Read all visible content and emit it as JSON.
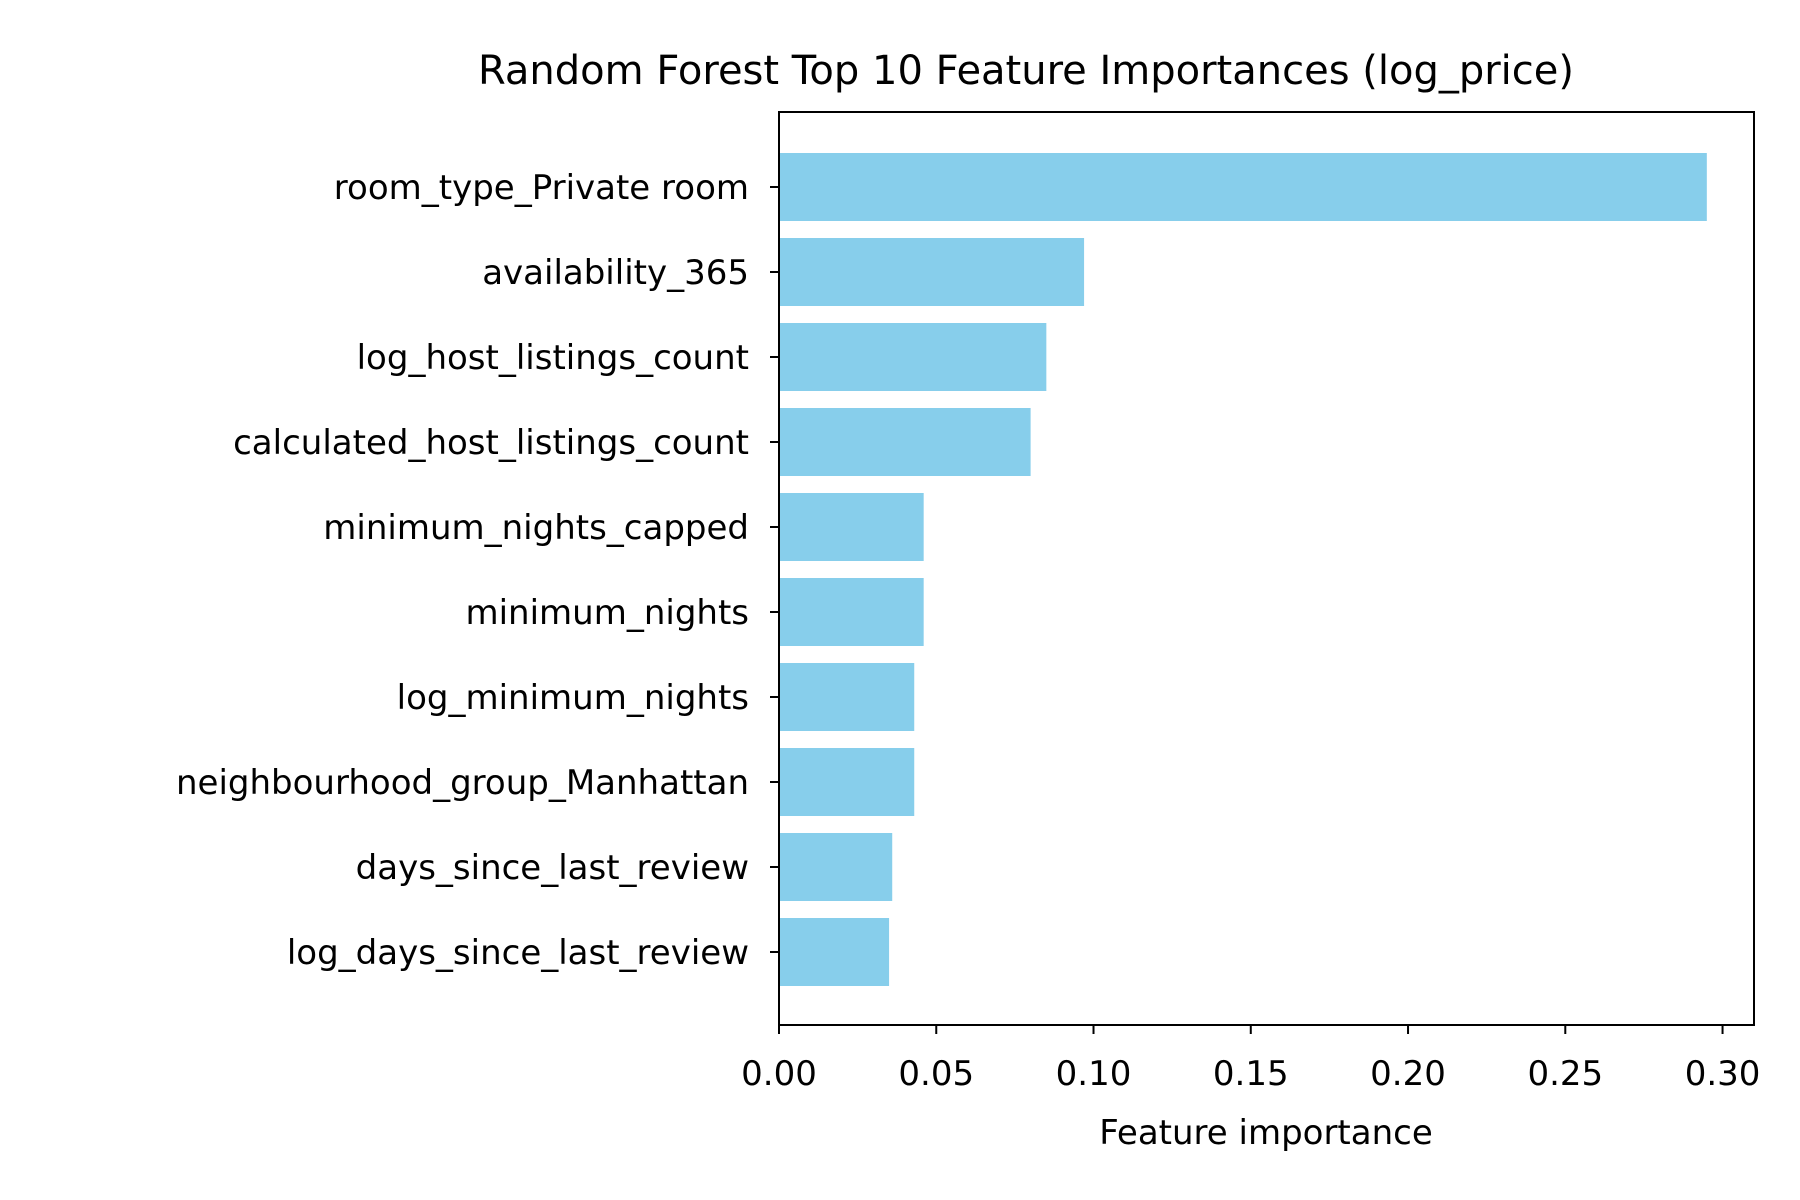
{
  "chart_data": {
    "type": "bar",
    "orientation": "horizontal",
    "title": "Random Forest Top 10 Feature Importances (log_price)",
    "xlabel": "Feature importance",
    "ylabel": "",
    "xlim": [
      0,
      0.31
    ],
    "x_ticks": [
      0.0,
      0.05,
      0.1,
      0.15,
      0.2,
      0.25,
      0.3
    ],
    "x_tick_labels": [
      "0.00",
      "0.05",
      "0.10",
      "0.15",
      "0.20",
      "0.25",
      "0.30"
    ],
    "grid": false,
    "legend": "none",
    "bar_color": "#87ceeb",
    "categories": [
      "room_type_Private room",
      "availability_365",
      "log_host_listings_count",
      "calculated_host_listings_count",
      "minimum_nights_capped",
      "minimum_nights",
      "log_minimum_nights",
      "neighbourhood_group_Manhattan",
      "days_since_last_review",
      "log_days_since_last_review"
    ],
    "values": [
      0.295,
      0.097,
      0.085,
      0.08,
      0.046,
      0.046,
      0.043,
      0.043,
      0.036,
      0.035
    ]
  }
}
